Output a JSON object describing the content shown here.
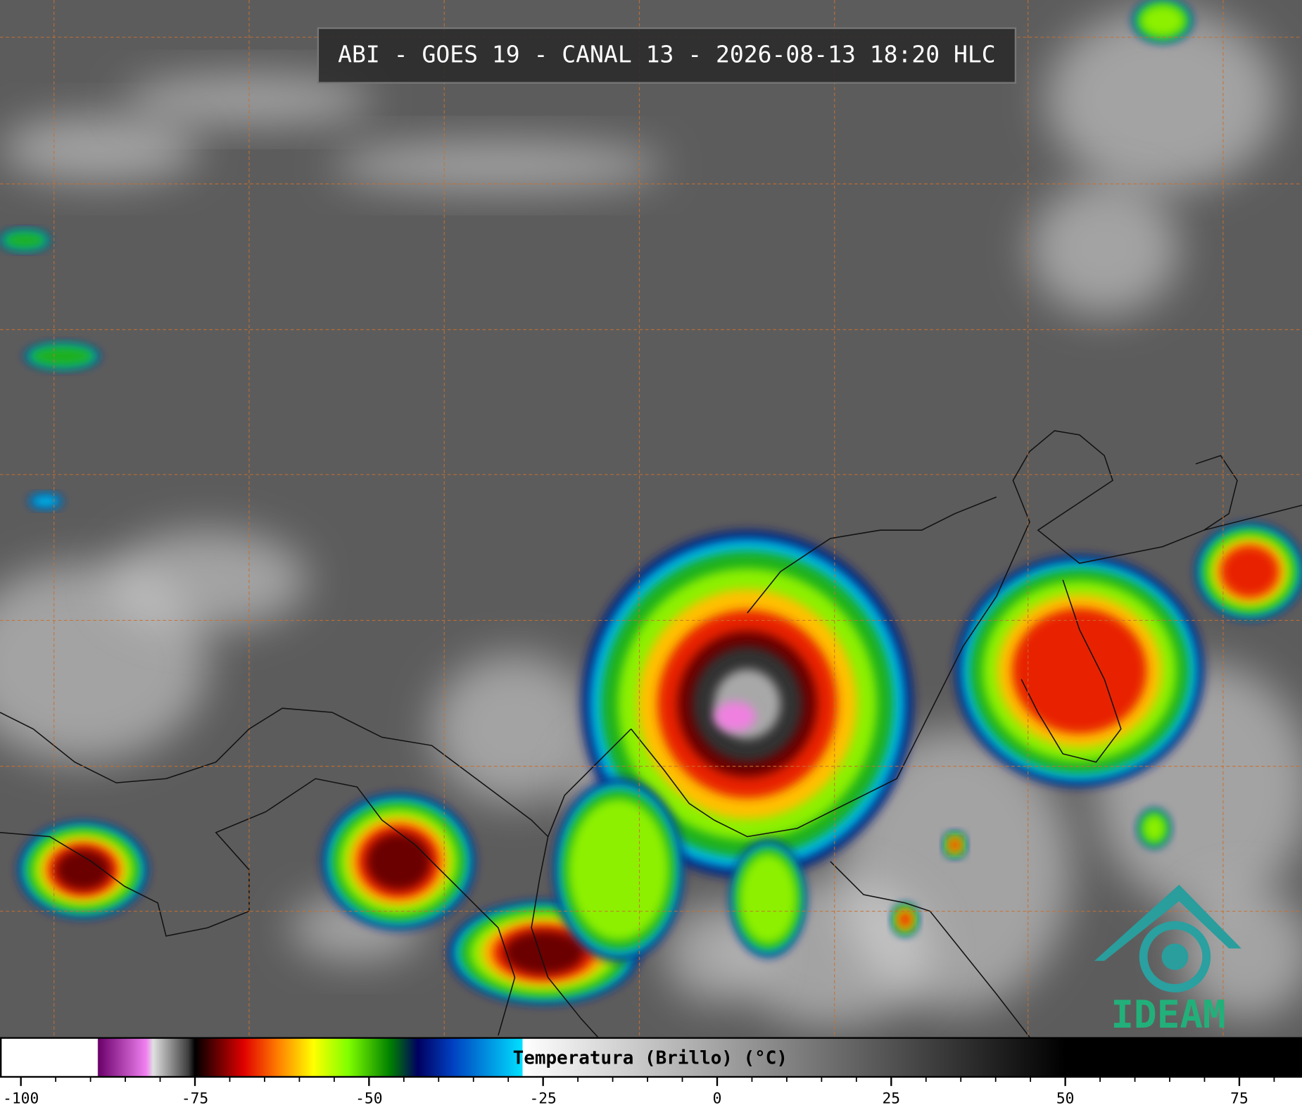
{
  "header": {
    "title": "ABI - GOES 19 - CANAL 13 - 2026-08-13 18:20 HLC"
  },
  "colorbar": {
    "label": "Temperatura (Brillo) (°C)",
    "xlim": [
      -103,
      84
    ],
    "xticks": [
      -100,
      -75,
      -50,
      -25,
      0,
      25,
      50,
      75
    ],
    "minor_ticks": [
      -95,
      -90,
      -85,
      -80,
      -70,
      -65,
      -60,
      -55,
      -45,
      -40,
      -35,
      -30,
      -20,
      -15,
      -10,
      -5,
      5,
      10,
      15,
      20,
      30,
      35,
      40,
      45,
      55,
      60,
      65,
      70,
      80
    ],
    "colormap": [
      {
        "value": -103,
        "color": "#ffffff"
      },
      {
        "value": -89,
        "color": "#ffffff"
      },
      {
        "value": -88.9,
        "color": "#6a006a"
      },
      {
        "value": -82,
        "color": "#f080f0"
      },
      {
        "value": -81,
        "color": "#e0e0e0"
      },
      {
        "value": -76,
        "color": "#404040"
      },
      {
        "value": -75,
        "color": "#000000"
      },
      {
        "value": -72,
        "color": "#600000"
      },
      {
        "value": -68,
        "color": "#e00000"
      },
      {
        "value": -63,
        "color": "#ff8000"
      },
      {
        "value": -58,
        "color": "#ffff00"
      },
      {
        "value": -53,
        "color": "#80ff00"
      },
      {
        "value": -47,
        "color": "#008000"
      },
      {
        "value": -43,
        "color": "#000060"
      },
      {
        "value": -38,
        "color": "#0040c0"
      },
      {
        "value": -28,
        "color": "#00e0ff"
      },
      {
        "value": -27.9,
        "color": "#ffffff"
      },
      {
        "value": 50,
        "color": "#000000"
      },
      {
        "value": 84,
        "color": "#000000"
      }
    ]
  },
  "logo": {
    "text": "IDEAM"
  }
}
